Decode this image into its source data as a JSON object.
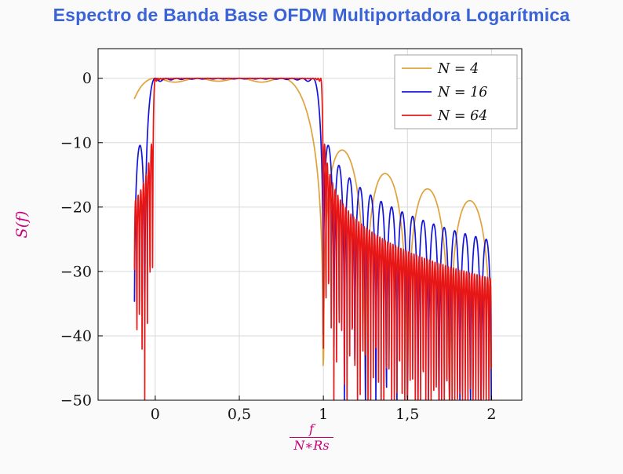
{
  "chart_data": {
    "type": "line",
    "title": "Espectro de Banda Base OFDM Multiportadora Logarítmica",
    "xlabel_numerator": "f",
    "xlabel_denominator": "N∗Rs",
    "ylabel": "S(f)",
    "xlim": [
      -0.34,
      2.18
    ],
    "ylim": [
      -50,
      4.6
    ],
    "x_domain": [
      -0.1235,
      1.999
    ],
    "clip_db": -50,
    "grid": true,
    "legend_position": "top-right",
    "model": "S_dB(x) = 10*log10( sum_{k=0}^{N-1} sinc^2(N*x - k) ), sinc(u)=sin(pi*u)/(pi*u), x = f/(N*Rs); values below -50 dB clipped; flat 0 dB passband on 0<=x<=1 with sidelobes decaying beyond, sidelobe period 1/N",
    "xticks": {
      "values": [
        0,
        0.5,
        1,
        1.5,
        2
      ],
      "labels": [
        "0",
        "0,5",
        "1",
        "1,5",
        "2"
      ]
    },
    "yticks": {
      "values": [
        0,
        -10,
        -20,
        -30,
        -40,
        -50
      ],
      "labels": [
        "0",
        "−10",
        "−20",
        "−30",
        "−40",
        "−50"
      ]
    },
    "series": [
      {
        "name": "N = 4",
        "N": 4,
        "color": "#E0A23C",
        "samples": 801
      },
      {
        "name": "N = 16",
        "N": 16,
        "color": "#1414DD",
        "samples": 1101
      },
      {
        "name": "N = 64",
        "N": 64,
        "color": "#E81717",
        "samples": 1601
      }
    ],
    "colors": {
      "title": "#3A63D8",
      "axis_label": "#C8007C",
      "tick_label": "#111111",
      "grid": "#D9D9D9",
      "frame": "#000000",
      "background": "#FAFAFA",
      "plot_background": "#FFFFFF",
      "legend_border": "#A6A6A6",
      "legend_background": "#FFFFFF"
    }
  }
}
